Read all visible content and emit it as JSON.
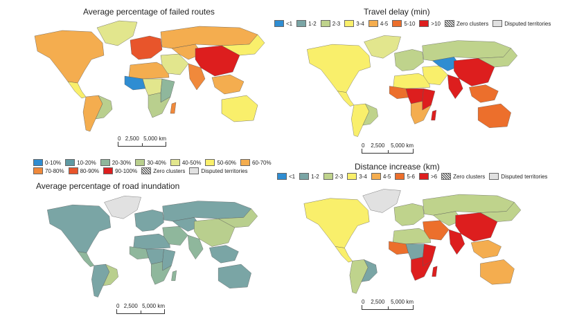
{
  "panels": [
    {
      "title": "Average percentage of failed routes",
      "legend": [
        {
          "label": "0-10%",
          "color": "#2f8dd2"
        },
        {
          "label": "10-20%",
          "color": "#5f9aa3"
        },
        {
          "label": "20-30%",
          "color": "#8fb79c"
        },
        {
          "label": "30-40%",
          "color": "#b9cf8e"
        },
        {
          "label": "40-50%",
          "color": "#e2e68d"
        },
        {
          "label": "50-60%",
          "color": "#f9ef6b"
        },
        {
          "label": "60-70%",
          "color": "#f4ad4f"
        },
        {
          "label": "70-80%",
          "color": "#f0893b"
        },
        {
          "label": "80-90%",
          "color": "#e8552b"
        },
        {
          "label": "90-100%",
          "color": "#dd1e1e"
        }
      ],
      "zero_clusters": "Zero clusters",
      "disputed": "Disputed territories",
      "regions": {
        "north_america": "#f4ad4f",
        "greenland": "#e2e68d",
        "central_america": "#f9ef6b",
        "south_america": "#f4ad4f",
        "south_america_east": "#b9cf8e",
        "europe": "#e8552b",
        "russia": "#f4ad4f",
        "russia_east": "#f9ef6b",
        "north_africa": "#f4ad4f",
        "west_africa": "#2f8dd2",
        "central_africa": "#e2e68d",
        "east_africa": "#8fb79c",
        "southern_africa": "#b9cf8e",
        "middle_east": "#e2e68d",
        "central_asia": "#f4ad4f",
        "china": "#dd1e1e",
        "india": "#f0893b",
        "southeast_asia": "#f4ad4f",
        "australia": "#f9ef6b",
        "madagascar": "#f0893b"
      },
      "scale": {
        "labels": [
          "0",
          "2,500",
          "5,000 km"
        ]
      }
    },
    {
      "title": "Travel delay (min)",
      "legend": [
        {
          "label": "<1",
          "color": "#2f8dd2"
        },
        {
          "label": "1-2",
          "color": "#7aa5a5"
        },
        {
          "label": "2-3",
          "color": "#bfd38c"
        },
        {
          "label": "3-4",
          "color": "#f9ef6b"
        },
        {
          "label": "4-5",
          "color": "#f4ad4f"
        },
        {
          "label": "5-10",
          "color": "#ec6f2c"
        },
        {
          "label": ">10",
          "color": "#dd1e1e"
        }
      ],
      "zero_clusters": "Zero clusters",
      "disputed": "Disputed territories",
      "regions": {
        "north_america": "#f9ef6b",
        "greenland": "#e2e68d",
        "central_america": "#f9ef6b",
        "south_america": "#f9ef6b",
        "south_america_east": "#bfd38c",
        "europe": "#bfd38c",
        "russia": "#bfd38c",
        "russia_east": "#bfd38c",
        "north_africa": "#f9ef6b",
        "west_africa": "#ec6f2c",
        "central_africa": "#dd1e1e",
        "east_africa": "#dd1e1e",
        "southern_africa": "#f4ad4f",
        "middle_east": "#f9ef6b",
        "central_asia": "#2f8dd2",
        "china": "#dd1e1e",
        "india": "#dd1e1e",
        "southeast_asia": "#ec6f2c",
        "australia": "#ec6f2c",
        "madagascar": "#dd1e1e"
      },
      "scale": {
        "labels": [
          "0",
          "2,500",
          "5,000 km"
        ]
      }
    },
    {
      "title": "Average percentage of road inundation",
      "legend": [],
      "zero_clusters": "",
      "disputed": "",
      "regions": {
        "north_america": "#7aa5a5",
        "greenland": "#e1e1e1",
        "central_america": "#8fb79c",
        "south_america": "#7aa5a5",
        "south_america_east": "#b9cf8e",
        "europe": "#7aa5a5",
        "russia": "#7aa5a5",
        "russia_east": "#b9cf8e",
        "north_africa": "#7aa5a5",
        "west_africa": "#8fb79c",
        "central_africa": "#7aa5a5",
        "east_africa": "#7aa5a5",
        "southern_africa": "#8fb79c",
        "middle_east": "#8fb79c",
        "central_asia": "#7aa5a5",
        "china": "#b9cf8e",
        "india": "#8fb79c",
        "southeast_asia": "#7aa5a5",
        "australia": "#7aa5a5",
        "madagascar": "#8fb79c"
      },
      "scale": {
        "labels": [
          "0",
          "2,500",
          "5,000 km"
        ]
      }
    },
    {
      "title": "Distance increase (km)",
      "legend": [
        {
          "label": "<1",
          "color": "#2f8dd2"
        },
        {
          "label": "1-2",
          "color": "#7aa5a5"
        },
        {
          "label": "2-3",
          "color": "#bfd38c"
        },
        {
          "label": "3-4",
          "color": "#f9ef6b"
        },
        {
          "label": "4-5",
          "color": "#f4ad4f"
        },
        {
          "label": "5-6",
          "color": "#ec6f2c"
        },
        {
          "label": ">6",
          "color": "#dd1e1e"
        }
      ],
      "zero_clusters": "Zero clusters",
      "disputed": "Disputed territories",
      "regions": {
        "north_america": "#f9ef6b",
        "greenland": "#e1e1e1",
        "central_america": "#f9ef6b",
        "south_america": "#bfd38c",
        "south_america_east": "#7aa5a5",
        "europe": "#bfd38c",
        "russia": "#bfd38c",
        "russia_east": "#bfd38c",
        "north_africa": "#bfd38c",
        "west_africa": "#ec6f2c",
        "central_africa": "#7aa5a5",
        "east_africa": "#dd1e1e",
        "southern_africa": "#dd1e1e",
        "middle_east": "#ec6f2c",
        "central_asia": "#bfd38c",
        "china": "#dd1e1e",
        "india": "#dd1e1e",
        "southeast_asia": "#f4ad4f",
        "australia": "#f4ad4f",
        "madagascar": "#dd1e1e"
      },
      "scale": {
        "labels": [
          "0",
          "2,500",
          "5,000 km"
        ]
      }
    }
  ]
}
